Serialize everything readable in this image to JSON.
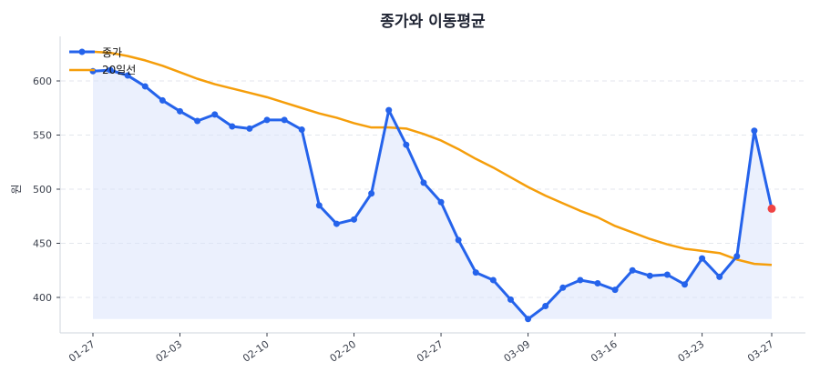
{
  "chart_data": {
    "type": "line",
    "title": "종가와 이동평균",
    "xlabel": "",
    "ylabel": "원",
    "ylim": [
      370,
      640
    ],
    "yticks": [
      400,
      450,
      500,
      550,
      600
    ],
    "grid": {
      "y": true,
      "x": false,
      "style": "dashed"
    },
    "legend_position": "upper left",
    "x_tick_labels": [
      {
        "index": 0,
        "label": "01-27"
      },
      {
        "index": 5,
        "label": "02-03"
      },
      {
        "index": 10,
        "label": "02-10"
      },
      {
        "index": 15,
        "label": "02-20"
      },
      {
        "index": 20,
        "label": "02-27"
      },
      {
        "index": 25,
        "label": "03-09"
      },
      {
        "index": 30,
        "label": "03-16"
      },
      {
        "index": 35,
        "label": "03-23"
      },
      {
        "index": 39,
        "label": "03-27"
      }
    ],
    "series": [
      {
        "name": "종가",
        "color": "#2563eb",
        "marker": "circle",
        "fill": "#dbe4fb",
        "fill_baseline": 380,
        "values": [
          609,
          610,
          605,
          595,
          582,
          572,
          563,
          569,
          558,
          556,
          564,
          564,
          555,
          485,
          468,
          472,
          496,
          573,
          541,
          506,
          488,
          453,
          423,
          416,
          398,
          380,
          392,
          409,
          416,
          413,
          407,
          425,
          420,
          421,
          412,
          436,
          419,
          438,
          554,
          482
        ],
        "last_point_color": "#ef4444"
      },
      {
        "name": "20일선",
        "color": "#f59e0b",
        "marker": "none",
        "values": [
          627,
          626,
          623,
          619,
          614,
          608,
          602,
          597,
          593,
          589,
          585,
          580,
          575,
          570,
          566,
          561,
          557,
          557,
          556,
          551,
          545,
          537,
          528,
          520,
          511,
          502,
          494,
          487,
          480,
          474,
          466,
          460,
          454,
          449,
          445,
          443,
          441,
          435,
          431,
          430
        ]
      }
    ]
  }
}
